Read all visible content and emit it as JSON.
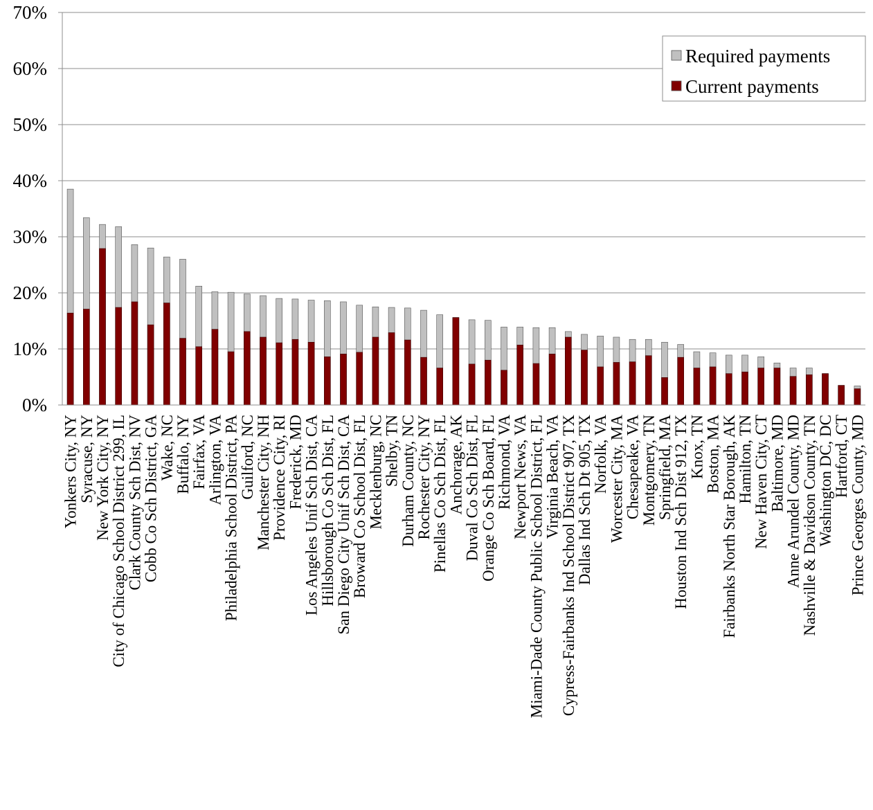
{
  "chart_data": {
    "type": "bar",
    "stacking": "overlay",
    "title": "",
    "xlabel": "",
    "ylabel": "",
    "ylim": [
      0,
      70
    ],
    "y_tick_values": [
      0,
      10,
      20,
      30,
      40,
      50,
      60,
      70
    ],
    "y_tick_labels": [
      "0%",
      "10%",
      "20%",
      "30%",
      "40%",
      "50%",
      "60%",
      "70%"
    ],
    "grid": true,
    "legend_position": "top-right",
    "categories": [
      "Yonkers City, NY",
      "Syracuse, NY",
      "New York City, NY",
      "City of Chicago School District 299, IL",
      "Clark County Sch Dist, NV",
      "Cobb Co Sch District, GA",
      "Wake, NC",
      "Buffalo, NY",
      "Fairfax, VA",
      "Arlington, VA",
      "Philadelphia School District, PA",
      "Guilford, NC",
      "Manchester City, NH",
      "Providence City, RI",
      "Frederick, MD",
      "Los Angeles Unif Sch Dist, CA",
      "Hillsborough Co Sch Dist, FL",
      "San Diego City Unif Sch Dist, CA",
      "Broward Co School Dist, FL",
      "Mecklenburg, NC",
      "Shelby, TN",
      "Durham County, NC",
      "Rochester City, NY",
      "Pinellas Co Sch Dist, FL",
      "Anchorage, AK",
      "Duval Co Sch Dist, FL",
      "Orange Co Sch Board, FL",
      "Richmond, VA",
      "Newport News, VA",
      "Miami-Dade County Public School District, FL",
      "Virginia Beach, VA",
      "Cypress-Fairbanks Ind School District 907, TX",
      "Dallas Ind Sch Dt 905, TX",
      "Norfolk, VA",
      "Worcester City, MA",
      "Chesapeake, VA",
      "Montgomery, TN",
      "Springfield, MA",
      "Houston Ind Sch Dist 912, TX",
      "Knox, TN",
      "Boston, MA",
      "Fairbanks North Star Borough, AK",
      "Hamilton, TN",
      "New Haven City, CT",
      "Baltimore, MD",
      "Anne Arundel County, MD",
      "Nashville & Davidson County, TN",
      "Washington DC, DC",
      "Hartford, CT",
      "Prince Georges County, MD"
    ],
    "series": [
      {
        "name": "Required payments",
        "color": "#c0c0c0",
        "values": [
          38.5,
          33.4,
          32.2,
          31.8,
          28.6,
          28.0,
          26.4,
          26.0,
          21.2,
          20.2,
          20.1,
          19.8,
          19.5,
          19.0,
          18.9,
          18.7,
          18.6,
          18.4,
          17.8,
          17.5,
          17.4,
          17.3,
          16.9,
          16.1,
          15.6,
          15.2,
          15.1,
          13.9,
          13.9,
          13.8,
          13.8,
          13.1,
          12.6,
          12.3,
          12.1,
          11.7,
          11.7,
          11.2,
          10.8,
          9.5,
          9.3,
          8.9,
          8.9,
          8.6,
          7.5,
          6.6,
          6.6,
          5.6,
          3.5,
          3.4
        ]
      },
      {
        "name": "Current payments",
        "color": "#800000",
        "values": [
          16.4,
          17.1,
          27.9,
          17.4,
          18.4,
          14.3,
          18.2,
          11.9,
          10.4,
          13.5,
          9.5,
          13.1,
          12.1,
          11.1,
          11.7,
          11.2,
          8.6,
          9.1,
          9.4,
          12.1,
          12.9,
          11.6,
          8.5,
          6.6,
          15.6,
          7.3,
          8.0,
          6.2,
          10.7,
          7.4,
          9.1,
          12.1,
          9.8,
          6.8,
          7.6,
          7.7,
          8.8,
          4.9,
          8.5,
          6.6,
          6.8,
          5.6,
          5.9,
          6.6,
          6.6,
          5.1,
          5.4,
          5.6,
          3.5,
          2.9
        ]
      }
    ]
  }
}
